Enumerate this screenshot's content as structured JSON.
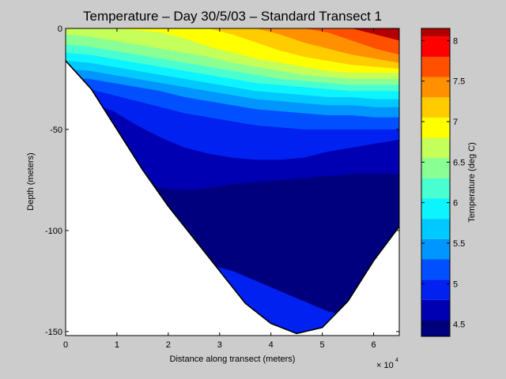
{
  "chart_data": [
    {
      "type": "contour",
      "title": "Temperature – Day 30/5/03 – Standard Transect 1",
      "xlabel": "Distance along transect (meters)",
      "ylabel": "Depth (meters)",
      "x_exponent_label": "× 10",
      "x_exponent_power": "4",
      "xlim": [
        0,
        65000
      ],
      "ylim": [
        -152,
        0
      ],
      "x_ticks": [
        0,
        10000,
        20000,
        30000,
        40000,
        50000,
        60000
      ],
      "x_tick_labels": [
        "0",
        "1",
        "2",
        "3",
        "4",
        "5",
        "6"
      ],
      "y_ticks": [
        0,
        -50,
        -100,
        -150
      ],
      "y_tick_labels": [
        "0",
        "-50",
        "-100",
        "-150"
      ],
      "bottom_profile": {
        "x": [
          0,
          5000,
          10000,
          15000,
          20000,
          25000,
          30000,
          35000,
          40000,
          45000,
          50000,
          55000,
          60000,
          65000
        ],
        "depth": [
          -16,
          -30,
          -50,
          -70,
          -88,
          -104,
          -120,
          -136,
          -146,
          -151,
          -148,
          -135,
          -115,
          -98
        ]
      },
      "contour_levels": [
        4.5,
        4.75,
        5.0,
        5.25,
        5.5,
        5.75,
        6.0,
        6.25,
        6.5,
        6.75,
        7.0,
        7.25,
        7.5,
        7.75,
        8.0
      ],
      "contour_boundaries": [
        {
          "lower": 7.75,
          "upper": 8.0,
          "depth": [
            0,
            0,
            0,
            0,
            0,
            0,
            0,
            0,
            0,
            0,
            0,
            0,
            0,
            -3,
            -6
          ]
        },
        {
          "lower": 7.5,
          "upper": 7.75,
          "depth": [
            0,
            0,
            0,
            0,
            0,
            0,
            0,
            0,
            0,
            0,
            0,
            -2,
            -6,
            -10,
            -13
          ]
        },
        {
          "lower": 7.25,
          "upper": 7.5,
          "depth": [
            0,
            0,
            0,
            0,
            0,
            0,
            0,
            0,
            0,
            -3,
            -7,
            -10,
            -13,
            -15,
            -17
          ]
        },
        {
          "lower": 7.0,
          "upper": 7.25,
          "depth": [
            0,
            0,
            0,
            0,
            0,
            0,
            0,
            -3,
            -7,
            -11,
            -14,
            -16,
            -18,
            -19,
            -20
          ]
        },
        {
          "lower": 6.75,
          "upper": 7.0,
          "depth": [
            0,
            0,
            0,
            -1,
            -2,
            -5,
            -9,
            -12,
            -15,
            -17,
            -19,
            -21,
            -22,
            -22,
            -22
          ]
        },
        {
          "lower": 6.5,
          "upper": 6.75,
          "depth": [
            -3,
            -4,
            -6,
            -8,
            -10,
            -12,
            -14,
            -17,
            -19,
            -21,
            -23,
            -24,
            -25,
            -25,
            -25
          ]
        },
        {
          "lower": 6.25,
          "upper": 6.5,
          "depth": [
            -8,
            -9,
            -11,
            -13,
            -15,
            -17,
            -19,
            -21,
            -23,
            -25,
            -26,
            -27,
            -28,
            -28,
            -28
          ]
        },
        {
          "lower": 6.0,
          "upper": 6.25,
          "depth": [
            -12,
            -13,
            -15,
            -17,
            -19,
            -21,
            -23,
            -25,
            -27,
            -28,
            -29,
            -30,
            -31,
            -31,
            -31
          ]
        },
        {
          "lower": 5.75,
          "upper": 6.0,
          "depth": [
            -16,
            -17,
            -19,
            -21,
            -23,
            -25,
            -27,
            -29,
            -31,
            -32,
            -33,
            -34,
            -34,
            -35,
            -35
          ]
        },
        {
          "lower": 5.5,
          "upper": 5.75,
          "depth": [
            -20,
            -21,
            -23,
            -25,
            -27,
            -29,
            -31,
            -33,
            -35,
            -36,
            -37,
            -38,
            -38,
            -39,
            -39
          ]
        },
        {
          "lower": 5.25,
          "upper": 5.5,
          "depth": [
            -24,
            -25,
            -27,
            -29,
            -31,
            -34,
            -36,
            -38,
            -40,
            -41,
            -42,
            -43,
            -43,
            -44,
            -44
          ]
        },
        {
          "lower": 5.0,
          "upper": 5.25,
          "depth": [
            -28,
            -30,
            -33,
            -36,
            -39,
            -42,
            -44,
            -46,
            -48,
            -49,
            -50,
            -50,
            -50,
            -50,
            -50
          ]
        },
        {
          "lower": 4.75,
          "upper": 5.0,
          "depth": [
            -34,
            -37,
            -41,
            -48,
            -54,
            -59,
            -62,
            -64,
            -65,
            -65,
            -64,
            -61,
            -59,
            -57,
            -55
          ]
        },
        {
          "lower": 4.5,
          "upper": 4.75,
          "depth": [
            -45,
            -54,
            -66,
            -74,
            -79,
            -80,
            -79,
            -77,
            -76,
            -75,
            -74,
            -73,
            -72,
            -72,
            -72
          ]
        }
      ],
      "deep_layer_boundary": {
        "lower": 4.75,
        "upper": 5.0,
        "depth": [
          -70,
          -84,
          -100,
          -110,
          -112,
          -114,
          -117,
          -120,
          -125,
          -130,
          -135,
          -140,
          -143,
          -145,
          -146
        ]
      },
      "colorbar": {
        "label": "Temperature (deg C)",
        "ticks": [
          4.5,
          5.0,
          5.5,
          6.0,
          6.5,
          7.0,
          7.5,
          8.0
        ],
        "tick_labels": [
          "4.5",
          "5",
          "5.5",
          "6",
          "6.5",
          "7",
          "7.5",
          "8"
        ],
        "range": [
          4.35,
          8.15
        ],
        "bands": [
          {
            "from": 4.35,
            "to": 4.55,
            "color": "#00007f"
          },
          {
            "from": 4.55,
            "to": 4.8,
            "color": "#0000b2"
          },
          {
            "from": 4.8,
            "to": 5.05,
            "color": "#0021ef"
          },
          {
            "from": 5.05,
            "to": 5.3,
            "color": "#0050ff"
          },
          {
            "from": 5.3,
            "to": 5.55,
            "color": "#0096ff"
          },
          {
            "from": 5.55,
            "to": 5.8,
            "color": "#00c9ff"
          },
          {
            "from": 5.8,
            "to": 6.05,
            "color": "#0cf4ff"
          },
          {
            "from": 6.05,
            "to": 6.3,
            "color": "#49ffd1"
          },
          {
            "from": 6.3,
            "to": 6.55,
            "color": "#8aff93"
          },
          {
            "from": 6.55,
            "to": 6.8,
            "color": "#c4ff5a"
          },
          {
            "from": 6.8,
            "to": 7.05,
            "color": "#ffff00"
          },
          {
            "from": 7.05,
            "to": 7.3,
            "color": "#ffcc00"
          },
          {
            "from": 7.3,
            "to": 7.55,
            "color": "#ff9000"
          },
          {
            "from": 7.55,
            "to": 7.8,
            "color": "#ff5000"
          },
          {
            "from": 7.8,
            "to": 8.05,
            "color": "#ff0000"
          },
          {
            "from": 8.05,
            "to": 8.15,
            "color": "#b20000"
          }
        ]
      }
    }
  ]
}
